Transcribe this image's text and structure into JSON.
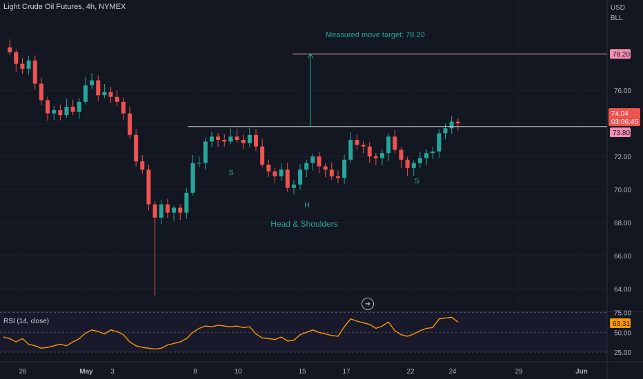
{
  "header": {
    "symbol_title": "Light Crude Oil Futures, 4h, NYMEX",
    "currency": "USD",
    "unit": "BLL"
  },
  "annotations": {
    "pattern": "Head & Shoulders",
    "target": "Measured move target: 78.20",
    "left_shoulder": "S",
    "head": "H",
    "right_shoulder": "S"
  },
  "price_tags": {
    "target": "78.20",
    "last": "74.04",
    "countdown": "03:06:45",
    "neckline": "73.80",
    "rsi_value": "63.31"
  },
  "rsi": {
    "title": "RSI (14, close)"
  },
  "colors": {
    "background": "#131722",
    "up": "#26a69a",
    "down": "#ef5350",
    "rsi": "#ff9800",
    "teal_text": "#26a69a",
    "target_tag": "#f48fb1"
  },
  "icons": {
    "replay": "arrow-circle-icon"
  },
  "chart_data": [
    {
      "type": "candlestick",
      "title": "Light Crude Oil Futures, 4h, NYMEX",
      "y_ticks": [
        "64.00",
        "66.00",
        "68.00",
        "70.00",
        "72.00",
        "74.00",
        "76.00"
      ],
      "x_ticks": [
        "26",
        "May",
        "3",
        "8",
        "10",
        "15",
        "17",
        "22",
        "24",
        "29",
        "Jun"
      ],
      "ylim": [
        62.5,
        79.5
      ],
      "neckline": 73.8,
      "target": 78.2,
      "last_price": 74.04,
      "close_path": [
        [
          0,
          78.6
        ],
        [
          1,
          78.3
        ],
        [
          2,
          77.6
        ],
        [
          3,
          77.3
        ],
        [
          4,
          77.8
        ],
        [
          5,
          76.4
        ],
        [
          6,
          75.4
        ],
        [
          7,
          74.6
        ],
        [
          8,
          74.8
        ],
        [
          9,
          74.5
        ],
        [
          10,
          75.0
        ],
        [
          11,
          74.7
        ],
        [
          12,
          75.3
        ],
        [
          13,
          76.3
        ],
        [
          14,
          76.6
        ],
        [
          15,
          75.7
        ],
        [
          16,
          75.9
        ],
        [
          17,
          75.6
        ],
        [
          18,
          75.3
        ],
        [
          19,
          74.6
        ],
        [
          20,
          73.3
        ],
        [
          21,
          71.7
        ],
        [
          22,
          71.2
        ],
        [
          23,
          69.1
        ],
        [
          24,
          68.3
        ],
        [
          25,
          69.1
        ],
        [
          26,
          68.6
        ],
        [
          27,
          68.9
        ],
        [
          28,
          68.6
        ],
        [
          29,
          69.8
        ],
        [
          30,
          71.6
        ],
        [
          31,
          71.6
        ],
        [
          32,
          72.9
        ],
        [
          33,
          73.2
        ],
        [
          34,
          73.0
        ],
        [
          35,
          72.9
        ],
        [
          36,
          73.2
        ],
        [
          37,
          73.0
        ],
        [
          38,
          72.8
        ],
        [
          39,
          73.3
        ],
        [
          40,
          72.6
        ],
        [
          41,
          71.5
        ],
        [
          42,
          71.1
        ],
        [
          43,
          70.8
        ],
        [
          44,
          71.2
        ],
        [
          45,
          70.1
        ],
        [
          46,
          70.3
        ],
        [
          47,
          71.2
        ],
        [
          48,
          71.6
        ],
        [
          49,
          72.0
        ],
        [
          50,
          71.4
        ],
        [
          51,
          71.2
        ],
        [
          52,
          70.8
        ],
        [
          53,
          70.7
        ],
        [
          54,
          71.8
        ],
        [
          55,
          73.0
        ],
        [
          56,
          72.7
        ],
        [
          57,
          72.6
        ],
        [
          58,
          72.0
        ],
        [
          59,
          71.9
        ],
        [
          60,
          72.2
        ],
        [
          61,
          73.2
        ],
        [
          62,
          72.4
        ],
        [
          63,
          71.8
        ],
        [
          64,
          71.3
        ],
        [
          65,
          71.6
        ],
        [
          66,
          71.9
        ],
        [
          67,
          72.2
        ],
        [
          68,
          72.3
        ],
        [
          69,
          73.4
        ],
        [
          70,
          73.7
        ],
        [
          71,
          74.1
        ],
        [
          72,
          74.0
        ]
      ]
    },
    {
      "type": "line",
      "title": "RSI (14, close)",
      "y_ticks": [
        "25.00",
        "50.00",
        "75.00"
      ],
      "ylim": [
        20,
        78
      ],
      "values": [
        44,
        42,
        38,
        42,
        35,
        33,
        30,
        31,
        33,
        35,
        33,
        38,
        42,
        49,
        53,
        51,
        48,
        53,
        51,
        47,
        38,
        33,
        31,
        30,
        29,
        30,
        34,
        36,
        38,
        42,
        50,
        55,
        58,
        57,
        59,
        58,
        57,
        58,
        56,
        57,
        48,
        43,
        42,
        41,
        44,
        39,
        40,
        47,
        50,
        53,
        50,
        48,
        46,
        45,
        57,
        67,
        64,
        62,
        60,
        55,
        58,
        63,
        52,
        47,
        45,
        48,
        52,
        55,
        56,
        67,
        68,
        69,
        63
      ]
    }
  ]
}
